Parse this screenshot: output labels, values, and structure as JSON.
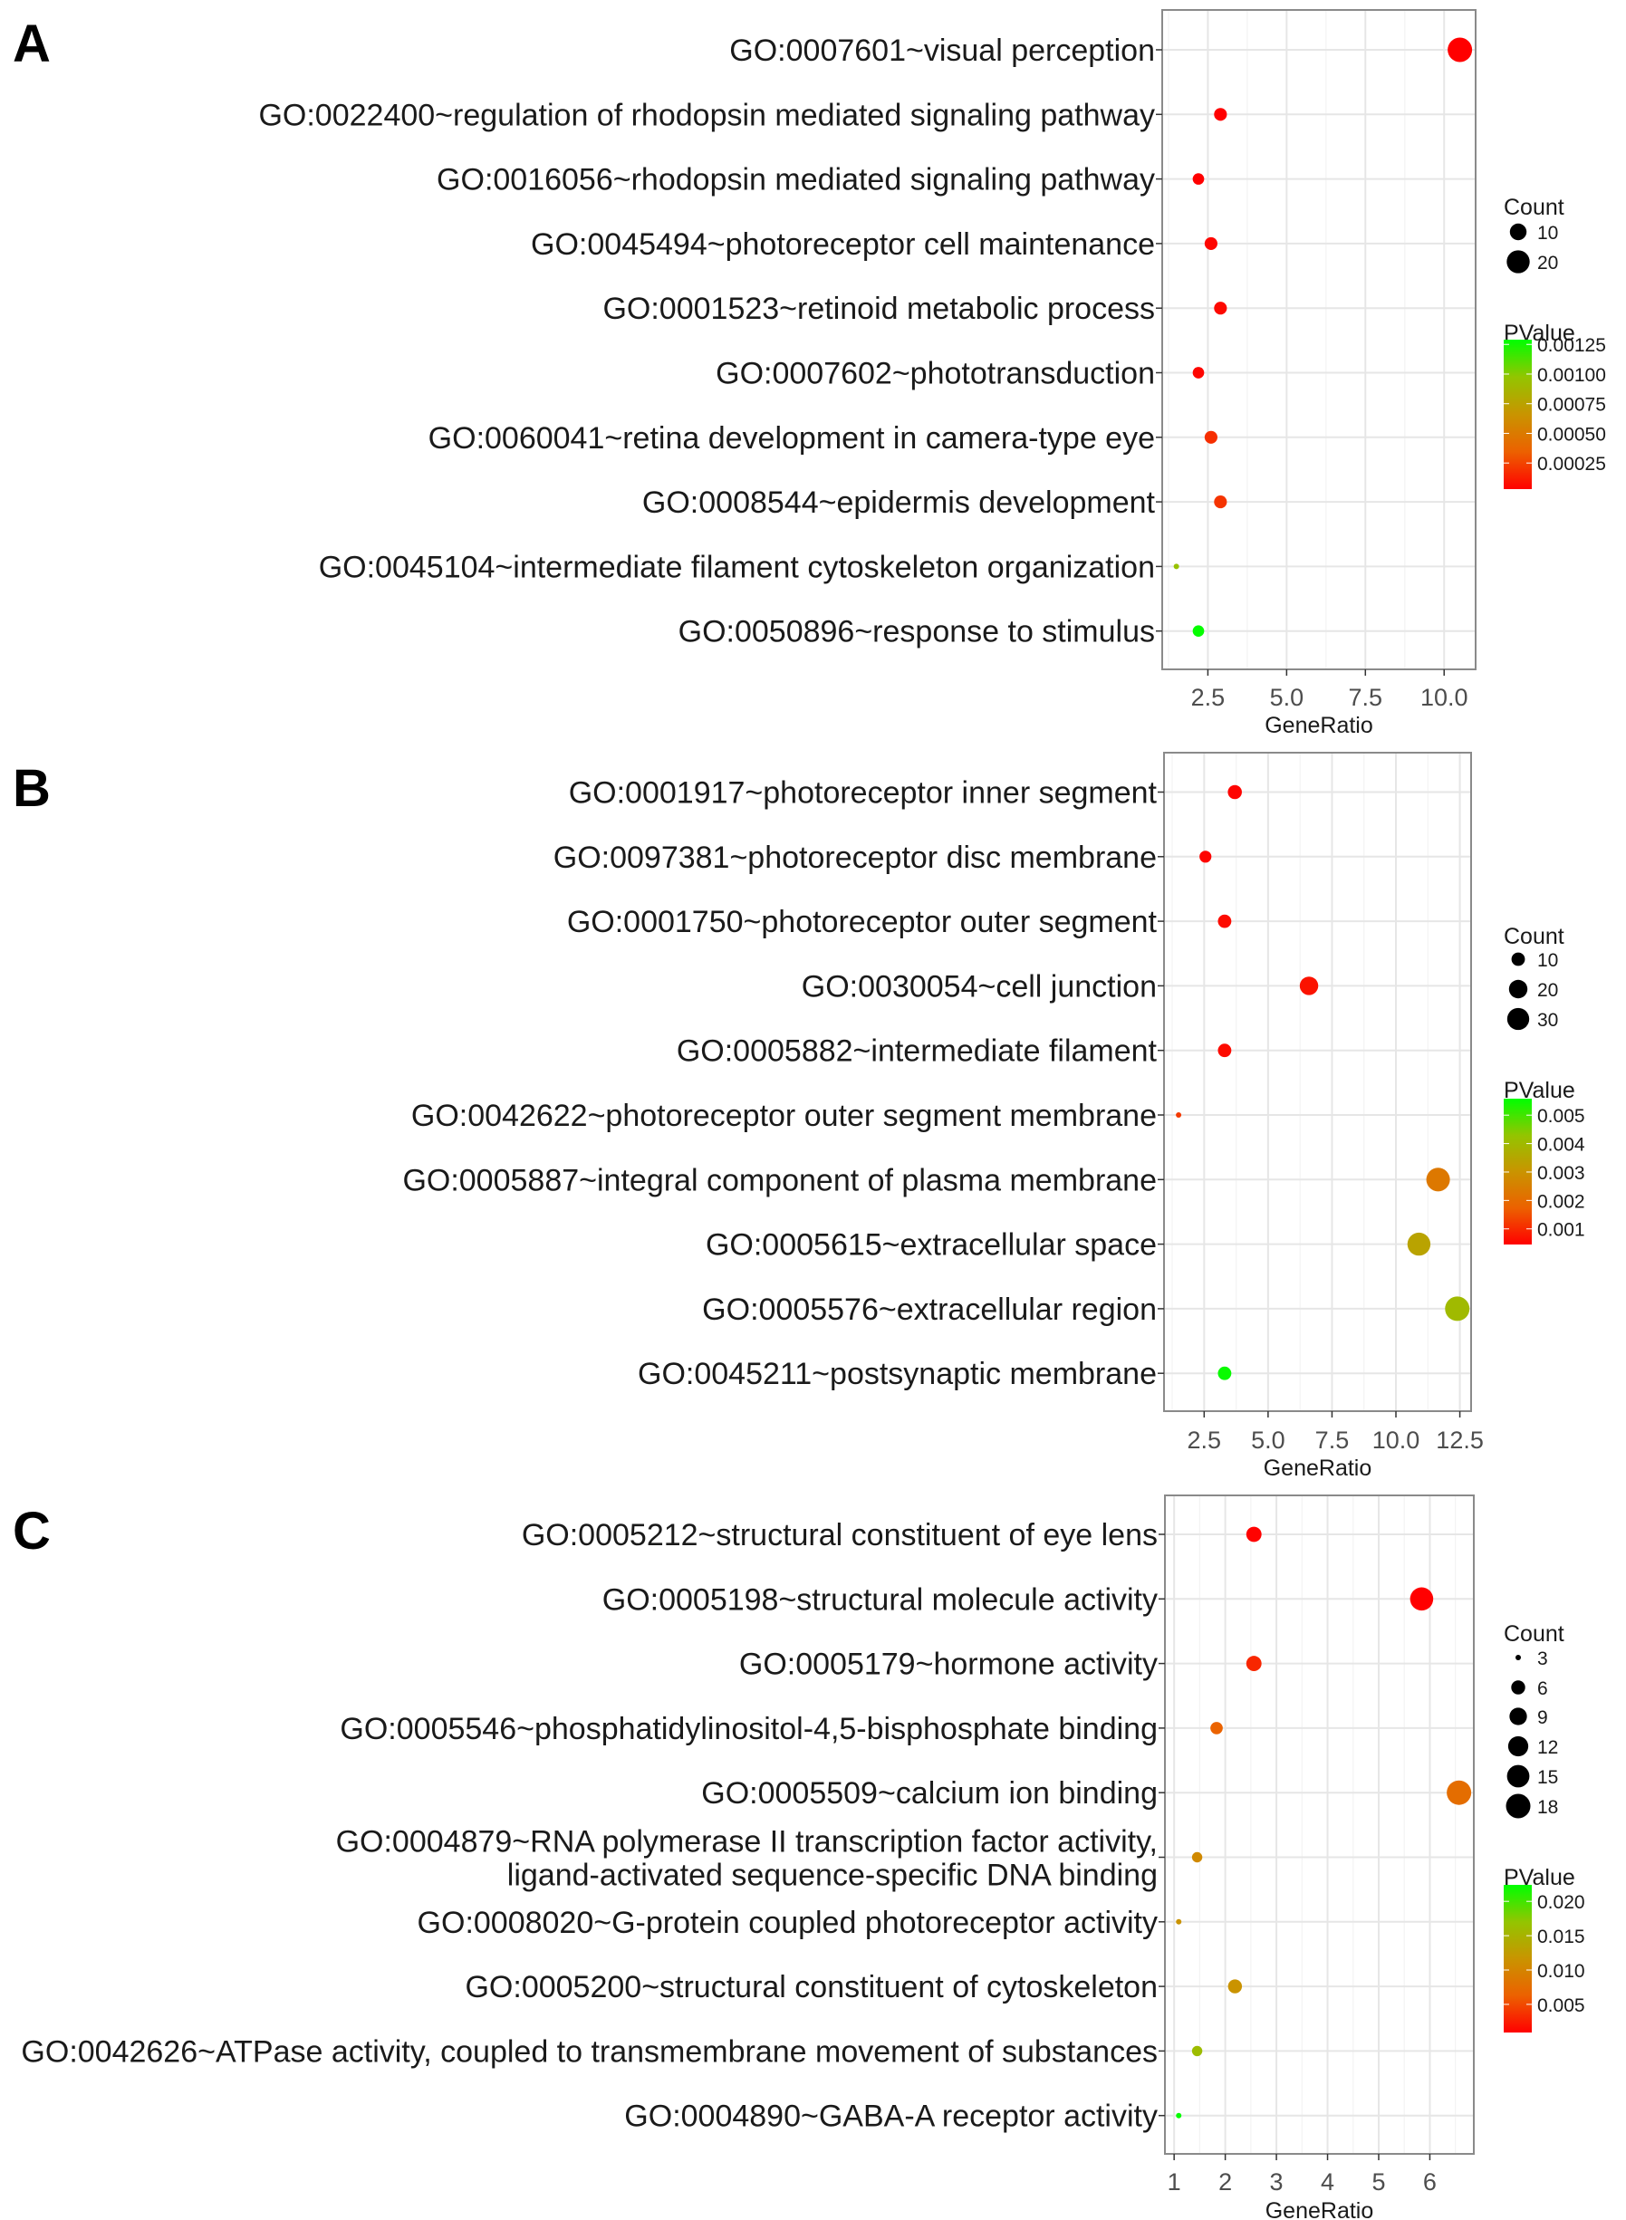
{
  "colors": {
    "low": "#ff0000",
    "high": "#00ff00"
  },
  "chart_data": [
    {
      "panel": "A",
      "type": "scatter",
      "categories": [
        [
          "GO:0007601~visual perception"
        ],
        [
          "GO:0022400~regulation of rhodopsin mediated signaling pathway"
        ],
        [
          "GO:0016056~rhodopsin mediated signaling pathway"
        ],
        [
          "GO:0045494~photoreceptor cell maintenance"
        ],
        [
          "GO:0001523~retinoid metabolic process"
        ],
        [
          "GO:0007602~phototransduction"
        ],
        [
          "GO:0060041~retina development in camera-type eye"
        ],
        [
          "GO:0008544~epidermis development"
        ],
        [
          "GO:0045104~intermediate filament cytoskeleton organization"
        ],
        [
          "GO:0050896~response to stimulus"
        ]
      ],
      "gene_ratio": [
        10.5,
        2.9,
        2.2,
        2.6,
        2.9,
        2.2,
        2.6,
        2.9,
        1.5,
        2.2
      ],
      "count": [
        23,
        6,
        5,
        6,
        6,
        5,
        6,
        6,
        3,
        5
      ],
      "pvalue": [
        3e-05,
        3e-05,
        3e-05,
        5e-05,
        6e-05,
        5e-05,
        0.00018,
        0.0002,
        0.00095,
        0.00128
      ],
      "xlabel": "GeneRatio",
      "xlim": [
        1.05,
        11.0
      ],
      "xticks": [
        2.5,
        5.0,
        7.5,
        10.0
      ],
      "xtick_labels": [
        "2.5",
        "5.0",
        "7.5",
        "10.0"
      ],
      "grid": true,
      "legend_position": "right",
      "size_legend": {
        "title": "Count",
        "breaks": [
          10,
          20
        ],
        "labels": [
          "10",
          "20"
        ],
        "limits": [
          3,
          23
        ]
      },
      "color_legend": {
        "title": "PValue",
        "breaks": [
          0.00125,
          0.001,
          0.00075,
          0.0005,
          0.00025
        ],
        "labels": [
          "0.00125",
          "0.00100",
          "0.00075",
          "0.00050",
          "0.00025"
        ],
        "limits": [
          3e-05,
          0.00129
        ]
      }
    },
    {
      "panel": "B",
      "type": "scatter",
      "categories": [
        [
          "GO:0001917~photoreceptor inner segment"
        ],
        [
          "GO:0097381~photoreceptor disc membrane"
        ],
        [
          "GO:0001750~photoreceptor outer segment"
        ],
        [
          "GO:0030054~cell junction"
        ],
        [
          "GO:0005882~intermediate filament"
        ],
        [
          "GO:0042622~photoreceptor outer segment membrane"
        ],
        [
          "GO:0005887~integral component of plasma membrane"
        ],
        [
          "GO:0005615~extracellular space"
        ],
        [
          "GO:0005576~extracellular region"
        ],
        [
          "GO:0045211~postsynaptic membrane"
        ]
      ],
      "gene_ratio": [
        3.7,
        2.55,
        3.3,
        6.6,
        3.3,
        1.5,
        11.65,
        10.9,
        12.4,
        3.3
      ],
      "count": [
        11,
        8,
        10,
        20,
        10,
        4,
        35,
        33,
        38,
        10
      ],
      "pvalue": [
        0.0005,
        0.0005,
        0.0006,
        0.0007,
        0.0006,
        0.0012,
        0.0023,
        0.0034,
        0.004,
        0.0055
      ],
      "xlabel": "GeneRatio",
      "xlim": [
        0.93,
        12.94
      ],
      "xticks": [
        2.5,
        5.0,
        7.5,
        10.0,
        12.5
      ],
      "xtick_labels": [
        "2.5",
        "5.0",
        "7.5",
        "10.0",
        "12.5"
      ],
      "grid": true,
      "legend_position": "right",
      "size_legend": {
        "title": "Count",
        "breaks": [
          10,
          20,
          30
        ],
        "labels": [
          "10",
          "20",
          "30"
        ],
        "limits": [
          4,
          38
        ]
      },
      "color_legend": {
        "title": "PValue",
        "breaks": [
          0.005,
          0.004,
          0.003,
          0.002,
          0.001
        ],
        "labels": [
          "0.005",
          "0.004",
          "0.003",
          "0.002",
          "0.001"
        ],
        "limits": [
          0.00045,
          0.00558
        ]
      }
    },
    {
      "panel": "C",
      "type": "scatter",
      "categories": [
        [
          "GO:0005212~structural constituent of eye lens"
        ],
        [
          "GO:0005198~structural molecule activity"
        ],
        [
          "GO:0005179~hormone activity"
        ],
        [
          "GO:0005546~phosphatidylinositol-4,5-bisphosphate binding"
        ],
        [
          "GO:0005509~calcium ion binding"
        ],
        [
          "GO:0004879~RNA polymerase II transcription factor activity,",
          "ligand-activated sequence-specific DNA binding"
        ],
        [
          "GO:0008020~G-protein coupled photoreceptor activity"
        ],
        [
          "GO:0005200~structural constituent of cytoskeleton"
        ],
        [
          "GO:0042626~ATPase activity, coupled to transmembrane movement of substances"
        ],
        [
          "GO:0004890~GABA-A receptor activity"
        ]
      ],
      "gene_ratio": [
        2.56,
        5.84,
        2.56,
        1.83,
        6.57,
        1.45,
        1.09,
        2.19,
        1.45,
        1.09
      ],
      "count": [
        7,
        16,
        7,
        5,
        18,
        4,
        3,
        6,
        4,
        3
      ],
      "pvalue": [
        0.001,
        0.0009,
        0.003,
        0.0065,
        0.0075,
        0.0105,
        0.0115,
        0.0115,
        0.016,
        0.0222
      ],
      "xlabel": "GeneRatio",
      "xlim": [
        0.82,
        6.86
      ],
      "xticks": [
        1,
        2,
        3,
        4,
        5,
        6
      ],
      "xtick_labels": [
        "1",
        "2",
        "3",
        "4",
        "5",
        "6"
      ],
      "grid": true,
      "legend_position": "right",
      "size_legend": {
        "title": "Count",
        "breaks": [
          3,
          6,
          9,
          12,
          15,
          18
        ],
        "labels": [
          "3",
          "6",
          "9",
          "12",
          "15",
          "18"
        ],
        "limits": [
          3,
          18
        ]
      },
      "color_legend": {
        "title": "PValue",
        "breaks": [
          0.02,
          0.015,
          0.01,
          0.005
        ],
        "labels": [
          "0.020",
          "0.015",
          "0.010",
          "0.005"
        ],
        "limits": [
          0.0009,
          0.0224
        ]
      }
    }
  ]
}
